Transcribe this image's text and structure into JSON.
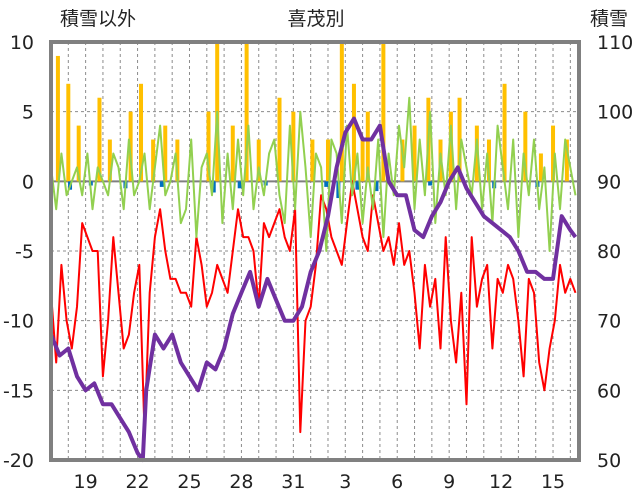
{
  "chart_data": {
    "type": "line",
    "title": "喜茂別",
    "left_axis_label": "積雪以外",
    "right_axis_label": "積雪",
    "left_ylim": [
      -20,
      10
    ],
    "left_yticks": [
      10,
      5,
      0,
      -5,
      -10,
      -15,
      -20
    ],
    "right_ylim": [
      50,
      110
    ],
    "right_yticks": [
      110,
      100,
      90,
      80,
      70,
      60,
      50
    ],
    "x_tick_labels": [
      "19",
      "22",
      "25",
      "28",
      "31",
      "3",
      "6",
      "9",
      "12",
      "15"
    ],
    "x_tick_days": [
      2,
      5,
      8,
      11,
      14,
      17,
      20,
      23,
      26,
      29
    ],
    "x_range_days": [
      0,
      30.5
    ],
    "grid": "dashed",
    "colors": {
      "red_line": "#ff0000",
      "green_line": "#92d050",
      "purple_line": "#7030a0",
      "gold_bars": "#ffc000",
      "blue_bars": "#0070c0",
      "frame": "#808080"
    },
    "series": [
      {
        "color": "#ff0000",
        "axis": "left",
        "x": [
          0.0,
          0.3,
          0.6,
          0.9,
          1.2,
          1.5,
          1.8,
          2.1,
          2.4,
          2.7,
          3.0,
          3.3,
          3.6,
          3.9,
          4.2,
          4.5,
          4.8,
          5.1,
          5.4,
          5.7,
          6.0,
          6.3,
          6.6,
          6.9,
          7.2,
          7.5,
          7.8,
          8.1,
          8.4,
          8.7,
          9.0,
          9.3,
          9.6,
          9.9,
          10.2,
          10.5,
          10.8,
          11.1,
          11.4,
          11.7,
          12.0,
          12.3,
          12.6,
          12.9,
          13.2,
          13.5,
          13.8,
          14.1,
          14.4,
          14.7,
          15.0,
          15.3,
          15.6,
          15.9,
          16.2,
          16.5,
          16.8,
          17.1,
          17.4,
          17.7,
          18.0,
          18.3,
          18.6,
          18.9,
          19.2,
          19.5,
          19.8,
          20.1,
          20.4,
          20.7,
          21.0,
          21.3,
          21.6,
          21.9,
          22.2,
          22.5,
          22.8,
          23.1,
          23.4,
          23.7,
          24.0,
          24.3,
          24.6,
          24.9,
          25.2,
          25.5,
          25.8,
          26.1,
          26.4,
          26.7,
          27.0,
          27.3,
          27.6,
          27.9,
          28.2,
          28.5,
          28.8,
          29.1,
          29.4,
          29.7,
          30.0,
          30.3
        ],
        "values": [
          -8,
          -13,
          -6,
          -10,
          -12,
          -9,
          -3,
          -4,
          -5,
          -5,
          -14,
          -10,
          -4,
          -8,
          -12,
          -11,
          -8,
          -6,
          -18,
          -8,
          -4,
          -2,
          -5,
          -7,
          -7,
          -8,
          -8,
          -9,
          -4,
          -6,
          -9,
          -8,
          -6,
          -7,
          -8,
          -5,
          -2,
          -4,
          -4,
          -5,
          -9,
          -3,
          -4,
          -3,
          -2,
          -4,
          -5,
          -2,
          -18,
          -10,
          -9,
          -6,
          -1,
          -2,
          -4,
          -5,
          -6,
          -3,
          0,
          -2,
          -4,
          -5,
          -1,
          -3,
          -5,
          -4,
          -6,
          -3,
          -6,
          -5,
          -8,
          -12,
          -6,
          -9,
          -7,
          -12,
          -4,
          -10,
          -13,
          -8,
          -16,
          -4,
          -9,
          -7,
          -6,
          -12,
          -7,
          -8,
          -6,
          -7,
          -10,
          -14,
          -7,
          -8,
          -13,
          -15,
          -12,
          -10,
          -6,
          -8,
          -7,
          -8
        ]
      },
      {
        "color": "#92d050",
        "axis": "left",
        "x": [
          0.0,
          0.3,
          0.6,
          0.9,
          1.2,
          1.5,
          1.8,
          2.1,
          2.4,
          2.7,
          3.0,
          3.3,
          3.6,
          3.9,
          4.2,
          4.5,
          4.8,
          5.1,
          5.4,
          5.7,
          6.0,
          6.3,
          6.6,
          6.9,
          7.2,
          7.5,
          7.8,
          8.1,
          8.4,
          8.7,
          9.0,
          9.3,
          9.6,
          9.9,
          10.2,
          10.5,
          10.8,
          11.1,
          11.4,
          11.7,
          12.0,
          12.3,
          12.6,
          12.9,
          13.2,
          13.5,
          13.8,
          14.1,
          14.4,
          14.7,
          15.0,
          15.3,
          15.6,
          15.9,
          16.2,
          16.5,
          16.8,
          17.1,
          17.4,
          17.7,
          18.0,
          18.3,
          18.6,
          18.9,
          19.2,
          19.5,
          19.8,
          20.1,
          20.4,
          20.7,
          21.0,
          21.3,
          21.6,
          21.9,
          22.2,
          22.5,
          22.8,
          23.1,
          23.4,
          23.7,
          24.0,
          24.3,
          24.6,
          24.9,
          25.2,
          25.5,
          25.8,
          26.1,
          26.4,
          26.7,
          27.0,
          27.3,
          27.6,
          27.9,
          28.2,
          28.5,
          28.8,
          29.1,
          29.4,
          29.7,
          30.0,
          30.3
        ],
        "values": [
          1,
          -2,
          2,
          -1,
          0,
          1,
          -1,
          2,
          -2,
          1,
          0,
          -1,
          2,
          1,
          -2,
          3,
          -1,
          0,
          2,
          -2,
          1,
          4,
          -1,
          0,
          2,
          -3,
          -2,
          3,
          -4,
          1,
          2,
          -1,
          5,
          -3,
          2,
          -2,
          3,
          -1,
          4,
          -2,
          1,
          -1,
          2,
          3,
          -1,
          -3,
          4,
          -2,
          5,
          1,
          -4,
          2,
          1,
          -5,
          3,
          2,
          -3,
          4,
          -1,
          2,
          -3,
          1,
          -2,
          3,
          -4,
          2,
          -1,
          4,
          1,
          6,
          -2,
          3,
          -1,
          5,
          -3,
          2,
          -1,
          4,
          -2,
          3,
          1,
          -1,
          3,
          -2,
          2,
          -3,
          4,
          1,
          -2,
          3,
          -4,
          2,
          -1,
          3,
          -2,
          1,
          -5,
          2,
          -2,
          3,
          1,
          -1
        ]
      },
      {
        "color": "#7030a0",
        "axis": "right",
        "x": [
          0.0,
          0.5,
          1.0,
          1.5,
          2.0,
          2.5,
          3.0,
          3.5,
          4.0,
          4.5,
          5.0,
          5.3,
          5.5,
          6.0,
          6.5,
          7.0,
          7.5,
          8.0,
          8.5,
          9.0,
          9.5,
          10.0,
          10.5,
          11.0,
          11.5,
          12.0,
          12.5,
          13.0,
          13.5,
          14.0,
          14.5,
          15.0,
          15.5,
          16.0,
          16.5,
          17.0,
          17.5,
          18.0,
          18.5,
          19.0,
          19.5,
          20.0,
          20.5,
          21.0,
          21.5,
          22.0,
          22.5,
          23.0,
          23.5,
          24.0,
          24.5,
          25.0,
          25.5,
          26.0,
          26.5,
          27.0,
          27.5,
          28.0,
          28.5,
          29.0,
          29.5,
          30.0,
          30.3
        ],
        "values": [
          68,
          65,
          66,
          62,
          60,
          61,
          58,
          58,
          56,
          54,
          51,
          50,
          60,
          68,
          66,
          68,
          64,
          62,
          60,
          64,
          63,
          66,
          71,
          74,
          77,
          72,
          76,
          73,
          70,
          70,
          72,
          77,
          80,
          85,
          92,
          97,
          99,
          96,
          96,
          98,
          90,
          88,
          88,
          83,
          82,
          85,
          87,
          90,
          92,
          89,
          87,
          85,
          84,
          83,
          82,
          80,
          77,
          77,
          76,
          76,
          85,
          83,
          82
        ]
      }
    ],
    "bars": [
      {
        "color": "#ffc000",
        "axis": "left",
        "x": [
          0.4,
          1.0,
          1.6,
          2.8,
          3.4,
          4.6,
          5.2,
          5.9,
          6.6,
          7.3,
          9.1,
          9.6,
          10.5,
          11.3,
          12.0,
          13.2,
          14.0,
          15.1,
          16.0,
          16.8,
          17.5,
          18.0,
          18.3,
          19.2,
          20.3,
          21.0,
          21.8,
          22.5,
          23.1,
          23.6,
          24.6,
          25.3,
          26.2,
          27.4,
          28.3,
          29.0,
          29.8
        ],
        "values": [
          9,
          7,
          4,
          6,
          3,
          5,
          7,
          3,
          4,
          3,
          5,
          10,
          4,
          10,
          3,
          6,
          5,
          3,
          3,
          10,
          7,
          3,
          5,
          10,
          3,
          4,
          6,
          3,
          5,
          6,
          4,
          3,
          7,
          5,
          2,
          4,
          3
        ]
      },
      {
        "color": "#0070c0",
        "axis": "left",
        "x": [
          1.1,
          2.3,
          4.3,
          6.4,
          9.4,
          10.9,
          12.4,
          15.9,
          16.6,
          17.7,
          18.8,
          21.9,
          25.6,
          28.1
        ],
        "values": [
          -0.6,
          -0.3,
          -0.5,
          -0.4,
          -0.8,
          -0.5,
          -0.3,
          -0.4,
          -1.2,
          -0.6,
          -0.7,
          -0.3,
          -0.5,
          -0.4
        ]
      }
    ]
  }
}
